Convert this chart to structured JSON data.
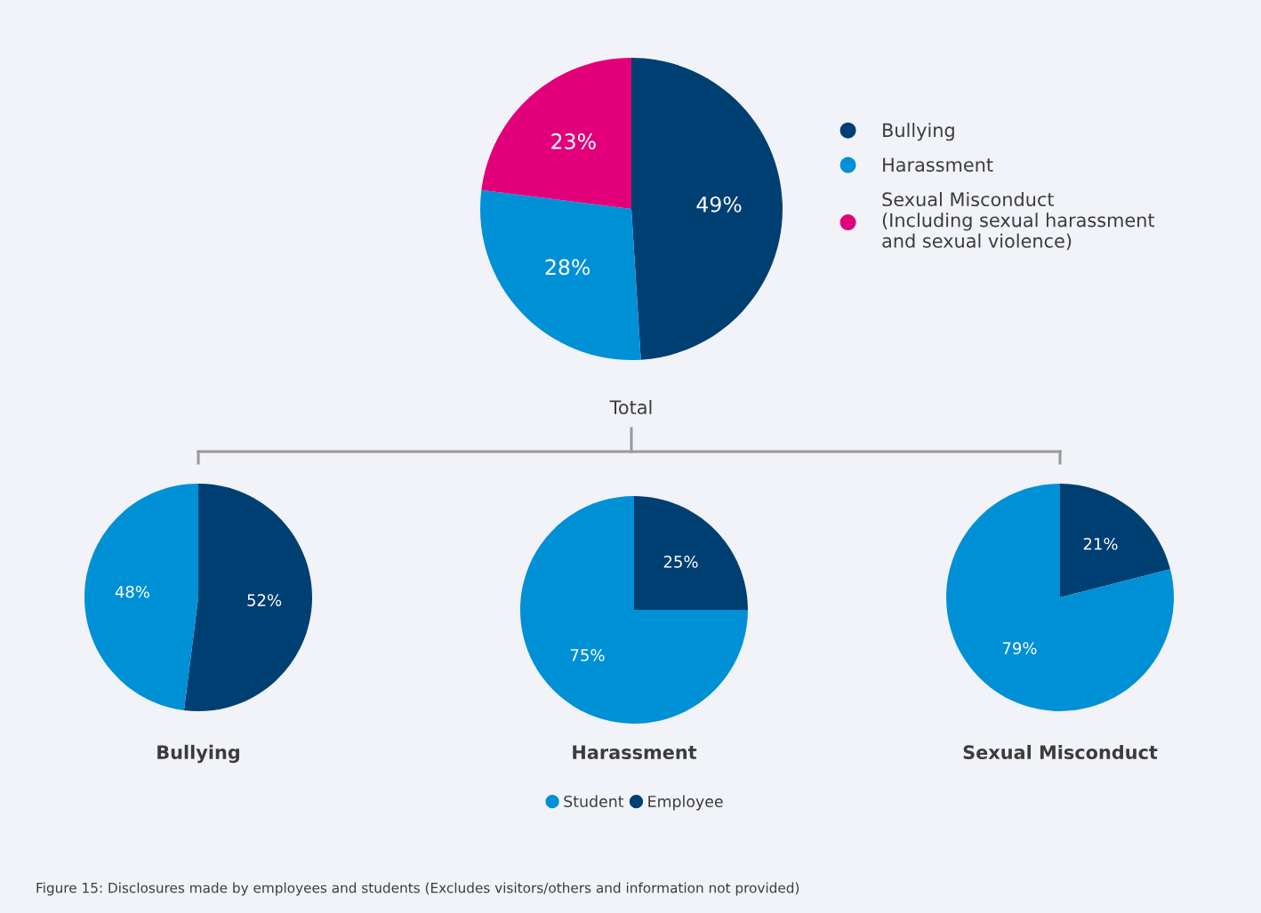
{
  "chart_data": [
    {
      "type": "pie",
      "title": "Total",
      "categories": [
        "Bullying",
        "Harassment",
        "Sexual Misconduct\n(Including sexual harassment\nand sexual violence)"
      ],
      "values": [
        49,
        28,
        23
      ],
      "colors": [
        "#003f72",
        "#0090d6",
        "#e2007a"
      ],
      "value_labels": [
        "49%",
        "28%",
        "23%"
      ],
      "legend": "right",
      "annotations": [
        "Figure 15: Disclosures made by employees and students (Excludes visitors/others and information not provided)"
      ]
    },
    {
      "type": "pie",
      "title": "Bullying",
      "categories": [
        "Employee",
        "Student"
      ],
      "values": [
        52,
        48
      ],
      "colors": [
        "#003f72",
        "#0090d6"
      ],
      "value_labels": [
        "52%",
        "48%"
      ],
      "legend": "bottom"
    },
    {
      "type": "pie",
      "title": "Harassment",
      "categories": [
        null,
        null
      ],
      "values": [
        25,
        75
      ],
      "colors": [
        "#003f72",
        "#0090d6"
      ],
      "value_labels": [
        "25%",
        "75%"
      ]
    },
    {
      "type": "pie",
      "title": "Sexual Misconduct",
      "categories": [
        null,
        null
      ],
      "values": [
        21,
        79
      ],
      "colors": [
        "#003f72",
        "#0090d6"
      ],
      "value_labels": [
        "21%",
        "79%"
      ]
    }
  ]
}
